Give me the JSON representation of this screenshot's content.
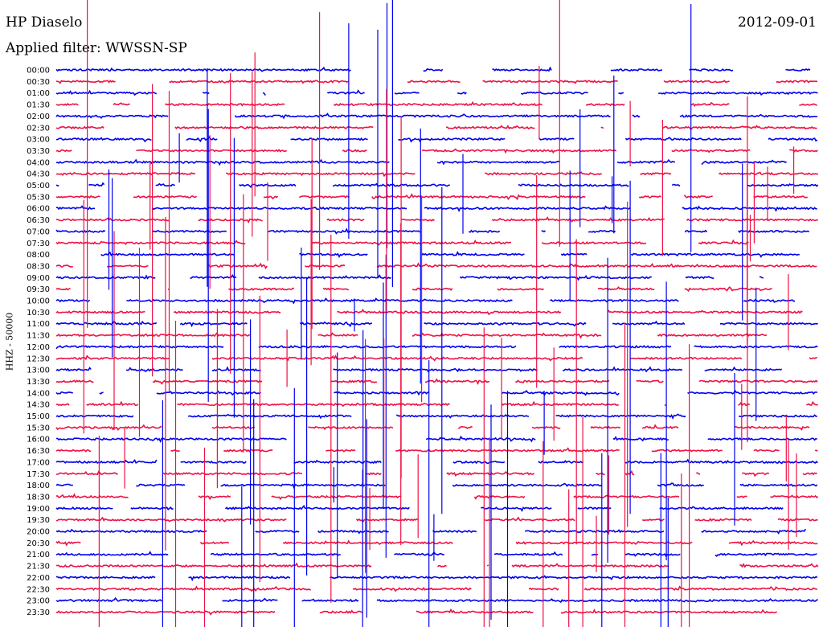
{
  "header": {
    "station": "HP Diaselo",
    "date": "2012-09-01",
    "filter_label": "Applied filter: WWSSN-SP"
  },
  "colors": {
    "trace_even": "#0000ee",
    "trace_odd": "#ee1144",
    "text": "#000000"
  },
  "chart_data": {
    "type": "line",
    "title": "HP Diaselo",
    "ylabel": "HHZ - 50000",
    "rows": [
      "00:00",
      "00:30",
      "01:00",
      "01:30",
      "02:00",
      "02:30",
      "03:00",
      "03:30",
      "04:00",
      "04:30",
      "05:00",
      "05:30",
      "06:00",
      "06:30",
      "07:00",
      "07:30",
      "08:00",
      "08:30",
      "09:00",
      "09:30",
      "10:00",
      "10:30",
      "11:00",
      "11:30",
      "12:00",
      "12:30",
      "13:00",
      "13:30",
      "14:00",
      "14:30",
      "15:00",
      "15:30",
      "16:00",
      "16:30",
      "17:00",
      "17:30",
      "18:00",
      "18:30",
      "19:00",
      "19:30",
      "20:00",
      "20:30",
      "21:00",
      "21:30",
      "22:00",
      "22:30",
      "23:00",
      "23:30"
    ],
    "minutes_per_row": 30,
    "scale_counts": 50000,
    "grid": false,
    "legend": "none"
  }
}
